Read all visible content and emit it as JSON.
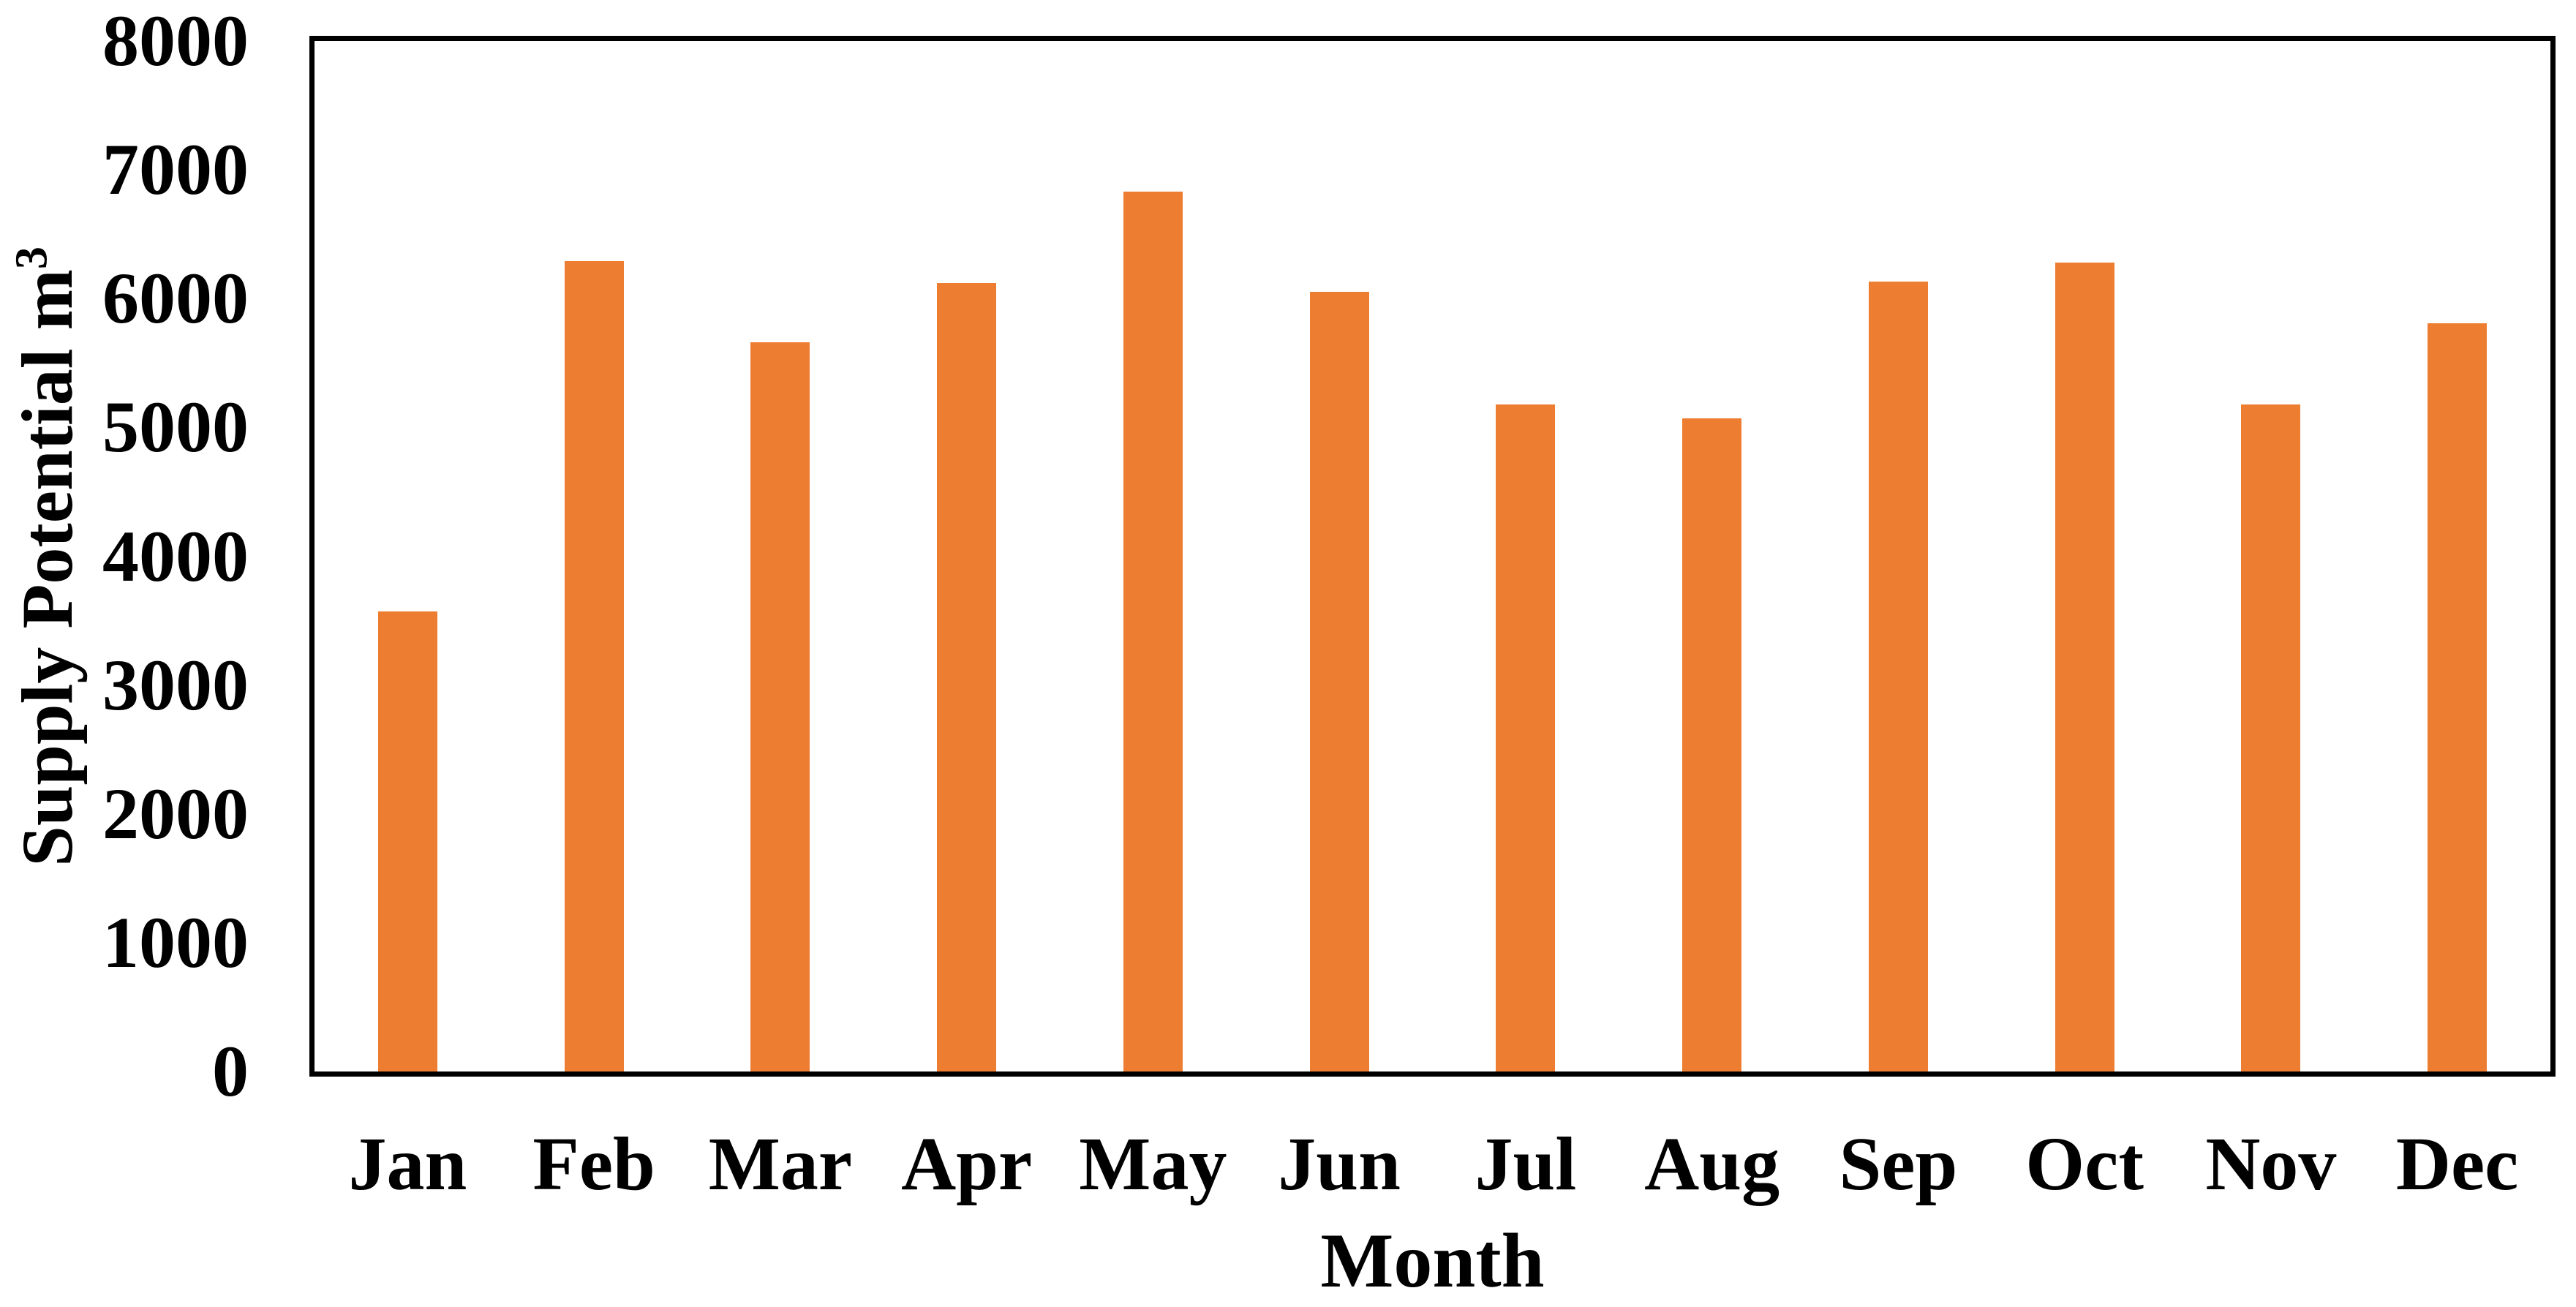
{
  "chart_data": {
    "type": "bar",
    "title": "",
    "categories": [
      "Jan",
      "Feb",
      "Mar",
      "Apr",
      "May",
      "Jun",
      "Jul",
      "Aug",
      "Sep",
      "Oct",
      "Nov",
      "Dec"
    ],
    "values": [
      3570,
      6290,
      5660,
      6120,
      6830,
      6050,
      5180,
      5070,
      6130,
      6280,
      5180,
      5810
    ],
    "series_name": "Supply Potential",
    "xlabel": "Month",
    "ylabel": "Supply Potential m³",
    "ylabel_parts": {
      "base": "Supply Potential m",
      "sup": "3"
    },
    "ylim": [
      0,
      8000
    ],
    "ytick_step": 1000,
    "ytick_labels": [
      "0",
      "1000",
      "2000",
      "3000",
      "4000",
      "5000",
      "6000",
      "7000",
      "8000"
    ],
    "grid": "off",
    "legend": "none",
    "bar_color": "#ED7D31",
    "axis_frame_color": "#000000",
    "background_color": "#FFFFFF"
  }
}
